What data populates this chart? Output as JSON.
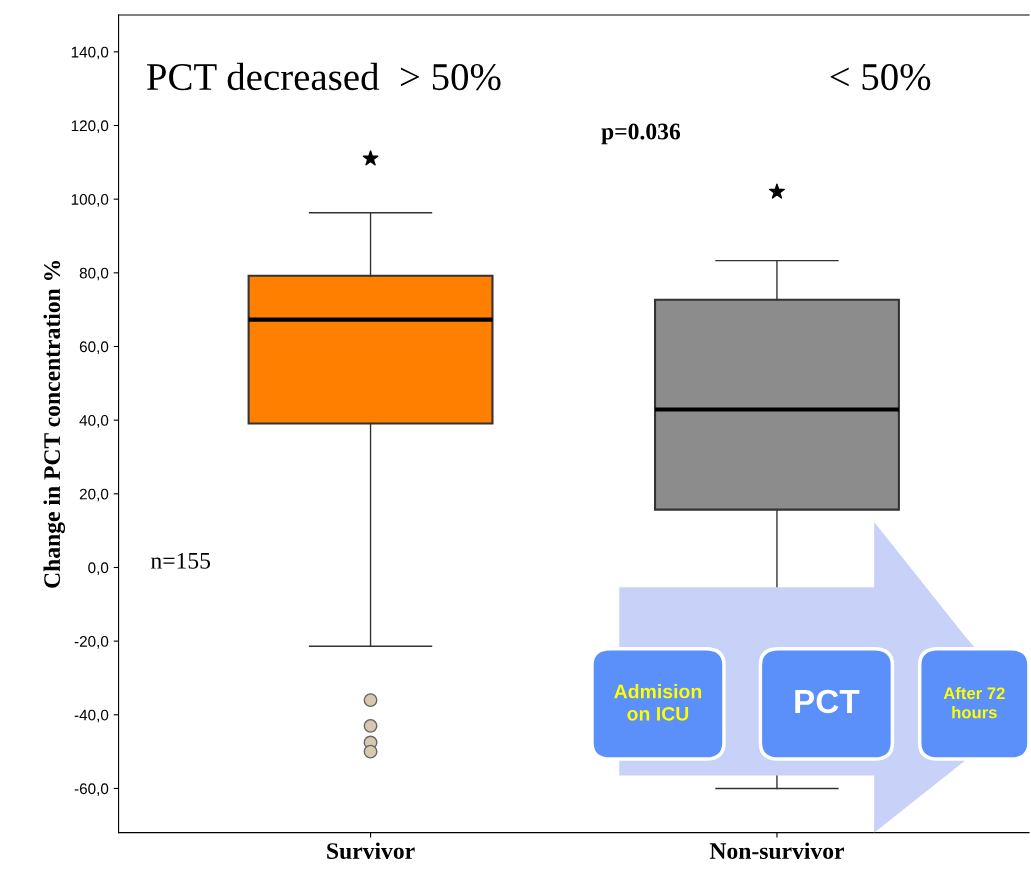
{
  "chart_data": {
    "type": "box",
    "ylabel": "Change in PCT concentration %",
    "categories": [
      "Survivor",
      "Non-survivor"
    ],
    "series": [
      {
        "color": "#ff7f00",
        "boxes": [
          {
            "low": -21.4,
            "q1": 39.1,
            "median": 67.3,
            "q3": 79.2,
            "high": 96.3,
            "outliers": [
              -36,
              -43,
              -47.5,
              -50
            ]
          },
          null
        ]
      },
      {
        "color": "#8c8c8c",
        "boxes": [
          null,
          {
            "low": -60,
            "q1": 15.7,
            "median": 42.9,
            "q3": 72.7,
            "high": 83.3
          }
        ]
      },
      {
        "type": "scatter",
        "marker": "star",
        "color": "#000000",
        "x": [
          "Survivor",
          "Non-survivor"
        ],
        "values": [
          111,
          102
        ]
      }
    ],
    "ylim": [
      -72,
      150
    ],
    "yticks": [
      {
        "value": -60,
        "label": "-60,0"
      },
      {
        "value": -40,
        "label": "-40,0"
      },
      {
        "value": -20,
        "label": "-20,0"
      },
      {
        "value": 0,
        "label": "0,0"
      },
      {
        "value": 20,
        "label": "20,0"
      },
      {
        "value": 40,
        "label": "40,0"
      },
      {
        "value": 60,
        "label": "60,0"
      },
      {
        "value": 80,
        "label": "80,0"
      },
      {
        "value": 100,
        "label": "100,0"
      },
      {
        "value": 120,
        "label": "120,0"
      },
      {
        "value": 140,
        "label": "140,0"
      }
    ],
    "grid": false,
    "annotations": [
      "PCT decreased  > 50%",
      "< 50%",
      "p=0.036",
      "n=155",
      "Admision on ICU",
      "PCT",
      "After 72 hours"
    ]
  }
}
